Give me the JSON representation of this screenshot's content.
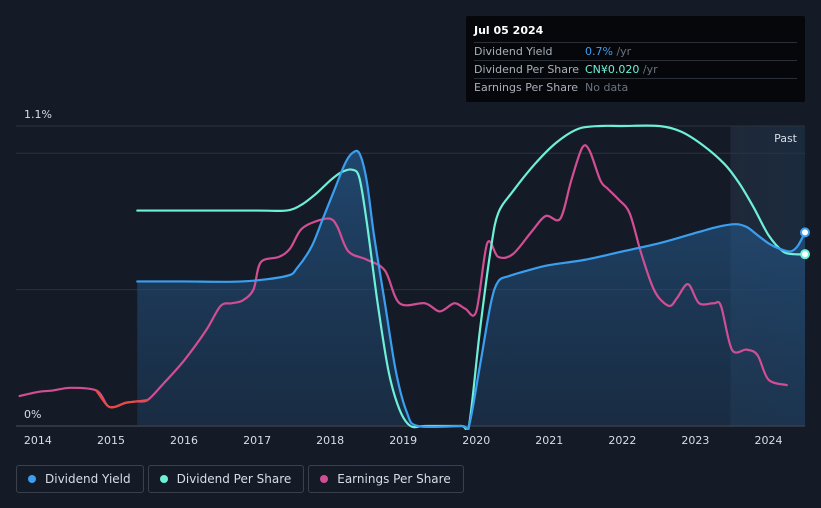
{
  "tooltip": {
    "date": "Jul 05 2024",
    "rows": [
      {
        "label": "Dividend Yield",
        "value": "0.7%",
        "unit": " /yr",
        "color": "#3b9ff0"
      },
      {
        "label": "Dividend Per Share",
        "value": "CN¥0.020",
        "unit": " /yr",
        "color": "#6ef0d8"
      },
      {
        "label": "Earnings Per Share",
        "value": "No data",
        "unit": "",
        "color": "#6a7280"
      }
    ]
  },
  "past_label": "Past",
  "chart_data": {
    "type": "line",
    "xlabel": "",
    "ylabel": "",
    "xlim": [
      2013.7,
      2024.5
    ],
    "ylim": [
      0,
      1.1
    ],
    "y_ticks": [
      {
        "value": 1.1,
        "label": "1.1%"
      },
      {
        "value": 0,
        "label": "0%"
      }
    ],
    "x_ticks": [
      2014,
      2015,
      2016,
      2017,
      2018,
      2019,
      2020,
      2021,
      2022,
      2023,
      2024
    ],
    "past_start": 2023.48,
    "series": [
      {
        "name": "Dividend Yield",
        "color": "#3b9ff0",
        "area": true,
        "x": [
          2015.36,
          2016.0,
          2016.8,
          2017.4,
          2017.55,
          2017.75,
          2017.9,
          2018.05,
          2018.2,
          2018.3,
          2018.4,
          2018.5,
          2018.6,
          2018.75,
          2018.9,
          2019.05,
          2019.2,
          2019.8,
          2019.9,
          2020.05,
          2020.2,
          2020.3,
          2020.45,
          2020.7,
          2021.0,
          2021.5,
          2022.0,
          2022.5,
          2022.9,
          2023.3,
          2023.55,
          2023.7,
          2023.85,
          2024.0,
          2024.15,
          2024.3,
          2024.4,
          2024.5
        ],
        "y": [
          0.53,
          0.53,
          0.53,
          0.55,
          0.58,
          0.66,
          0.76,
          0.86,
          0.96,
          1.0,
          1.0,
          0.9,
          0.7,
          0.45,
          0.2,
          0.05,
          0.0,
          0.0,
          0.0,
          0.22,
          0.45,
          0.53,
          0.55,
          0.57,
          0.59,
          0.61,
          0.64,
          0.67,
          0.7,
          0.73,
          0.74,
          0.73,
          0.7,
          0.67,
          0.65,
          0.64,
          0.66,
          0.71
        ]
      },
      {
        "name": "Dividend Per Share",
        "color": "#6ef0d8",
        "area": false,
        "x": [
          2015.36,
          2016.0,
          2017.0,
          2017.4,
          2017.6,
          2017.8,
          2018.0,
          2018.15,
          2018.3,
          2018.4,
          2018.5,
          2018.65,
          2018.8,
          2018.95,
          2019.1,
          2019.3,
          2019.8,
          2019.9,
          2020.05,
          2020.2,
          2020.3,
          2020.5,
          2020.8,
          2021.1,
          2021.4,
          2021.7,
          2022.0,
          2022.5,
          2022.8,
          2023.1,
          2023.4,
          2023.6,
          2023.8,
          2024.0,
          2024.2,
          2024.35,
          2024.5
        ],
        "y": [
          0.79,
          0.79,
          0.79,
          0.79,
          0.81,
          0.85,
          0.9,
          0.93,
          0.94,
          0.91,
          0.75,
          0.45,
          0.2,
          0.06,
          0.0,
          0.0,
          0.0,
          0.0,
          0.35,
          0.65,
          0.78,
          0.86,
          0.96,
          1.04,
          1.09,
          1.1,
          1.1,
          1.1,
          1.08,
          1.03,
          0.96,
          0.89,
          0.8,
          0.7,
          0.64,
          0.63,
          0.63
        ]
      },
      {
        "name": "Earnings Per Share",
        "color": "#d24e94",
        "area": false,
        "x": [
          2013.75,
          2014.0,
          2014.2,
          2014.45,
          2014.8,
          2014.95,
          2015.05,
          2015.2,
          2015.35,
          2015.5,
          2015.7,
          2016.0,
          2016.3,
          2016.5,
          2016.65,
          2016.8,
          2016.95,
          2017.05,
          2017.3,
          2017.45,
          2017.6,
          2017.8,
          2018.0,
          2018.1,
          2018.25,
          2018.5,
          2018.75,
          2018.95,
          2019.3,
          2019.5,
          2019.7,
          2019.85,
          2020.0,
          2020.15,
          2020.3,
          2020.5,
          2020.75,
          2020.95,
          2021.15,
          2021.3,
          2021.45,
          2021.55,
          2021.7,
          2021.8,
          2021.95,
          2022.1,
          2022.25,
          2022.4,
          2022.5,
          2022.65,
          2022.75,
          2022.9,
          2023.05,
          2023.25,
          2023.35,
          2023.5,
          2023.7,
          2023.85,
          2024.0,
          2024.25
        ],
        "y": [
          0.11,
          0.125,
          0.13,
          0.14,
          0.13,
          0.075,
          0.07,
          0.085,
          0.09,
          0.095,
          0.15,
          0.24,
          0.35,
          0.44,
          0.45,
          0.46,
          0.5,
          0.6,
          0.62,
          0.65,
          0.72,
          0.75,
          0.76,
          0.73,
          0.64,
          0.61,
          0.57,
          0.45,
          0.45,
          0.42,
          0.45,
          0.43,
          0.42,
          0.67,
          0.62,
          0.63,
          0.71,
          0.77,
          0.76,
          0.9,
          1.02,
          1.01,
          0.9,
          0.87,
          0.83,
          0.78,
          0.64,
          0.52,
          0.47,
          0.44,
          0.47,
          0.52,
          0.45,
          0.45,
          0.44,
          0.28,
          0.28,
          0.26,
          0.17,
          0.15
        ]
      }
    ],
    "segment_highlight": {
      "series": "Earnings Per Share",
      "from": 2014.8,
      "to": 2015.65,
      "color": "#e94a45"
    },
    "end_markers": true
  },
  "legend": [
    {
      "label": "Dividend Yield",
      "color": "#3b9ff0"
    },
    {
      "label": "Dividend Per Share",
      "color": "#6ef0d8"
    },
    {
      "label": "Earnings Per Share",
      "color": "#d24e94"
    }
  ]
}
